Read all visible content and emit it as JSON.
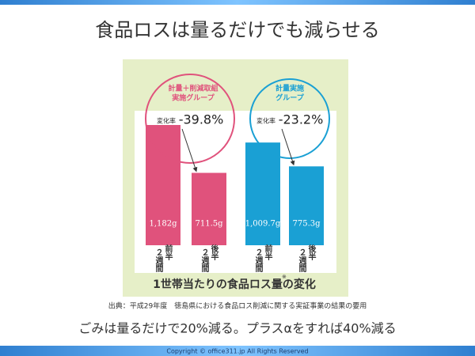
{
  "header": {
    "title": "食品ロスは量るだけでも減らせる"
  },
  "chart_data": {
    "type": "bar",
    "title": "1世帯当たりの食品ロス量の変化",
    "title_mark": "※",
    "categories": [
      {
        "span": "２週間",
        "half": "前半"
      },
      {
        "span": "２週間",
        "half": "後半"
      },
      {
        "span": "２週間",
        "half": "前半"
      },
      {
        "span": "２週間",
        "half": "後半"
      }
    ],
    "values": [
      1182,
      711.5,
      1009.7,
      775.3
    ],
    "value_labels": [
      "1,182g",
      "711.5g",
      "1,009.7g",
      "775.3g"
    ],
    "colors": [
      "#e0527c",
      "#e0527c",
      "#1aa0d4",
      "#1aa0d4"
    ],
    "groups": [
      {
        "name": [
          "計量＋削減取組",
          "実施グループ"
        ],
        "rate_label": "変化率",
        "rate": {
          "value": -39.8,
          "label": "-39.8%"
        },
        "color": "#e0527c"
      },
      {
        "name": [
          "計量実施",
          "グループ"
        ],
        "rate_label": "変化率",
        "rate": {
          "value": -23.2,
          "label": "-23.2%"
        },
        "color": "#1aa0d4"
      }
    ]
  },
  "source": "出典：平成29年度　徳島県における食品ロス削減に関する実証事業の結果の要用",
  "subtitle": "ごみは量るだけで20%減る。プラスαをすれば40%減る",
  "footer": "Copyright © office311.jp All Rights Reserved"
}
